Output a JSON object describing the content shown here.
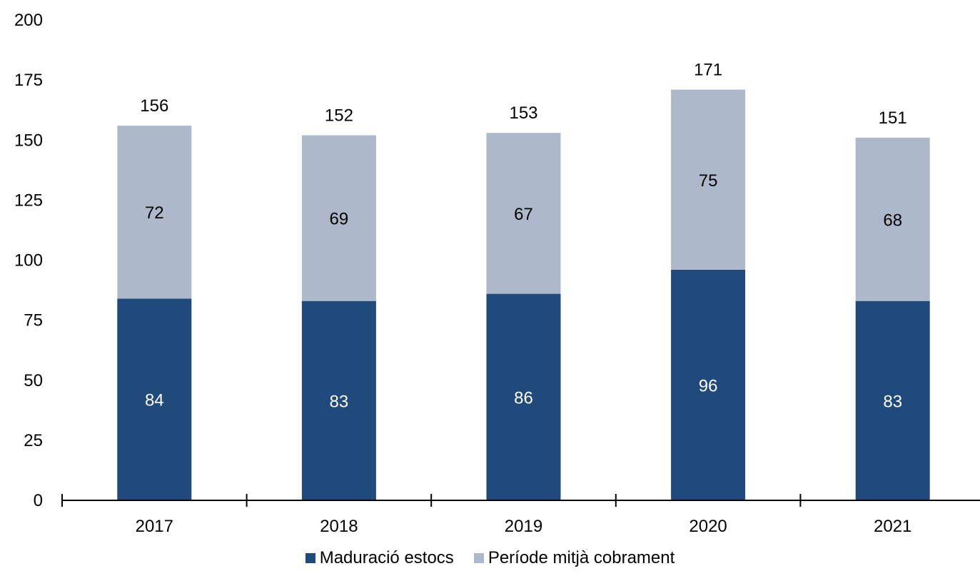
{
  "chart_data": {
    "type": "bar",
    "stacked": true,
    "categories": [
      "2017",
      "2018",
      "2019",
      "2020",
      "2021"
    ],
    "series": [
      {
        "name": "Maduració estocs",
        "values": [
          84,
          83,
          86,
          96,
          83
        ],
        "color": "#204a7c"
      },
      {
        "name": "Període mitjà cobrament",
        "values": [
          72,
          69,
          67,
          75,
          68
        ],
        "color": "#adb9ca"
      }
    ],
    "totals": [
      156,
      152,
      153,
      171,
      151
    ],
    "ylim": [
      0,
      200
    ],
    "yticks": [
      0,
      25,
      50,
      75,
      100,
      125,
      150,
      175,
      200
    ],
    "grid": false,
    "legend_position": "bottom"
  }
}
